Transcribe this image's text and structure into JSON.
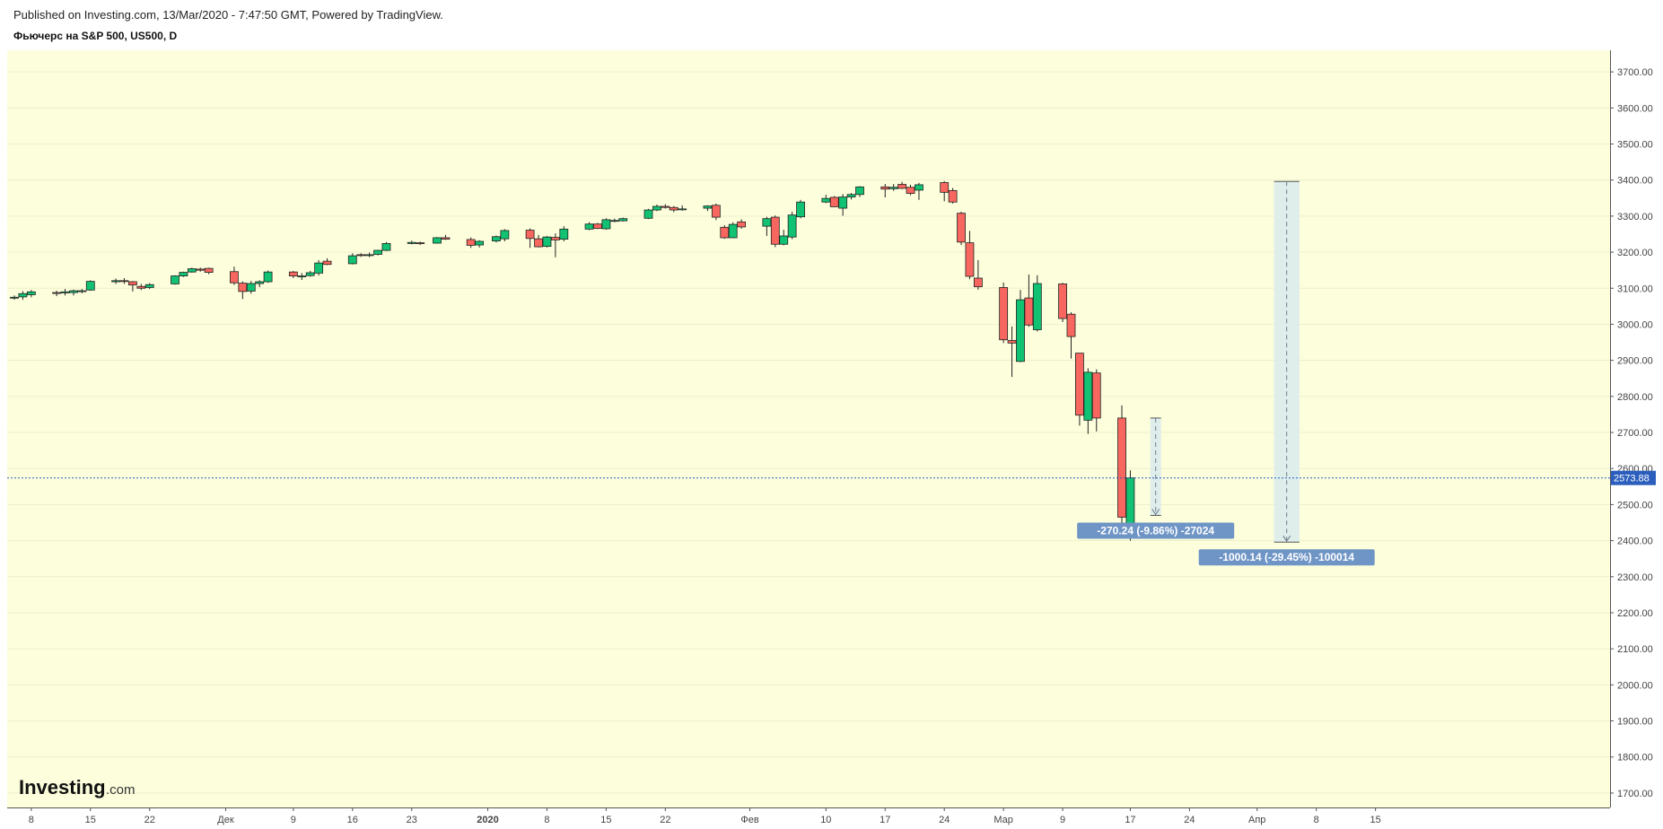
{
  "header": {
    "published": "Published on Investing.com, 13/Mar/2020 - 7:47:50 GMT, Powered by TradingView.",
    "title": "Фьючерс на S&P 500, US500, D"
  },
  "logo": {
    "main": "Investing",
    "suffix": ".com"
  },
  "colors": {
    "background": "#fcfedc",
    "up": "#10c272",
    "down": "#f7675f",
    "measure_fill": "#dcecec",
    "label_bg": "#6f95c6",
    "price_line": "#2c5fbd"
  },
  "chart_data": {
    "type": "candlestick",
    "title": "Фьючерс на S&P 500, US500, D",
    "ylim": [
      1660,
      3760
    ],
    "y_ticks": [
      "3700.00",
      "3600.00",
      "3500.00",
      "3400.00",
      "3300.00",
      "3200.00",
      "3100.00",
      "3000.00",
      "2900.00",
      "2800.00",
      "2700.00",
      "2600.00",
      "2500.00",
      "2400.00",
      "2300.00",
      "2200.00",
      "2100.00",
      "2000.00",
      "1900.00",
      "1800.00",
      "1700.00"
    ],
    "x_ticks": [
      "8",
      "15",
      "22",
      "Дек",
      "9",
      "16",
      "23",
      "2020",
      "8",
      "15",
      "22",
      "Фев",
      "10",
      "17",
      "24",
      "Мар",
      "9",
      "17",
      "24",
      "Апр",
      "8",
      "15"
    ],
    "last_price": "2573.88",
    "candles": [
      {
        "date": "2019-11-06",
        "o": 3074,
        "h": 3080,
        "l": 3068,
        "c": 3075
      },
      {
        "date": "2019-11-07",
        "o": 3076,
        "h": 3092,
        "l": 3068,
        "c": 3085
      },
      {
        "date": "2019-11-08",
        "o": 3082,
        "h": 3095,
        "l": 3075,
        "c": 3090
      },
      {
        "date": "2019-11-11",
        "o": 3088,
        "h": 3093,
        "l": 3078,
        "c": 3087
      },
      {
        "date": "2019-11-12",
        "o": 3087,
        "h": 3098,
        "l": 3080,
        "c": 3090
      },
      {
        "date": "2019-11-13",
        "o": 3088,
        "h": 3096,
        "l": 3080,
        "c": 3093
      },
      {
        "date": "2019-11-14",
        "o": 3093,
        "h": 3098,
        "l": 3086,
        "c": 3093
      },
      {
        "date": "2019-11-15",
        "o": 3095,
        "h": 3122,
        "l": 3093,
        "c": 3119
      },
      {
        "date": "2019-11-18",
        "o": 3118,
        "h": 3127,
        "l": 3112,
        "c": 3121
      },
      {
        "date": "2019-11-19",
        "o": 3121,
        "h": 3128,
        "l": 3112,
        "c": 3119
      },
      {
        "date": "2019-11-20",
        "o": 3118,
        "h": 3120,
        "l": 3091,
        "c": 3109
      },
      {
        "date": "2019-11-21",
        "o": 3105,
        "h": 3112,
        "l": 3095,
        "c": 3100
      },
      {
        "date": "2019-11-22",
        "o": 3102,
        "h": 3114,
        "l": 3098,
        "c": 3110
      },
      {
        "date": "2019-11-25",
        "o": 3112,
        "h": 3136,
        "l": 3110,
        "c": 3134
      },
      {
        "date": "2019-11-26",
        "o": 3134,
        "h": 3146,
        "l": 3131,
        "c": 3144
      },
      {
        "date": "2019-11-27",
        "o": 3145,
        "h": 3157,
        "l": 3143,
        "c": 3154
      },
      {
        "date": "2019-11-28",
        "o": 3153,
        "h": 3157,
        "l": 3146,
        "c": 3150
      },
      {
        "date": "2019-11-29",
        "o": 3155,
        "h": 3157,
        "l": 3139,
        "c": 3144
      },
      {
        "date": "2019-12-02",
        "o": 3146,
        "h": 3160,
        "l": 3109,
        "c": 3115
      },
      {
        "date": "2019-12-03",
        "o": 3114,
        "h": 3119,
        "l": 3070,
        "c": 3091
      },
      {
        "date": "2019-12-04",
        "o": 3092,
        "h": 3120,
        "l": 3085,
        "c": 3113
      },
      {
        "date": "2019-12-05",
        "o": 3113,
        "h": 3122,
        "l": 3103,
        "c": 3118
      },
      {
        "date": "2019-12-06",
        "o": 3118,
        "h": 3149,
        "l": 3115,
        "c": 3145
      },
      {
        "date": "2019-12-09",
        "o": 3145,
        "h": 3148,
        "l": 3128,
        "c": 3134
      },
      {
        "date": "2019-12-10",
        "o": 3134,
        "h": 3142,
        "l": 3123,
        "c": 3134
      },
      {
        "date": "2019-12-11",
        "o": 3135,
        "h": 3148,
        "l": 3132,
        "c": 3143
      },
      {
        "date": "2019-12-12",
        "o": 3142,
        "h": 3178,
        "l": 3135,
        "c": 3170
      },
      {
        "date": "2019-12-13",
        "o": 3175,
        "h": 3183,
        "l": 3164,
        "c": 3166
      },
      {
        "date": "2019-12-16",
        "o": 3168,
        "h": 3197,
        "l": 3166,
        "c": 3190
      },
      {
        "date": "2019-12-17",
        "o": 3193,
        "h": 3197,
        "l": 3187,
        "c": 3191
      },
      {
        "date": "2019-12-18",
        "o": 3192,
        "h": 3199,
        "l": 3186,
        "c": 3193
      },
      {
        "date": "2019-12-19",
        "o": 3194,
        "h": 3206,
        "l": 3191,
        "c": 3205
      },
      {
        "date": "2019-12-20",
        "o": 3205,
        "h": 3228,
        "l": 3203,
        "c": 3224
      },
      {
        "date": "2019-12-23",
        "o": 3224,
        "h": 3232,
        "l": 3222,
        "c": 3227
      },
      {
        "date": "2019-12-24",
        "o": 3226,
        "h": 3229,
        "l": 3220,
        "c": 3224
      },
      {
        "date": "2019-12-26",
        "o": 3225,
        "h": 3242,
        "l": 3224,
        "c": 3240
      },
      {
        "date": "2019-12-27",
        "o": 3240,
        "h": 3248,
        "l": 3234,
        "c": 3236
      },
      {
        "date": "2019-12-30",
        "o": 3235,
        "h": 3241,
        "l": 3212,
        "c": 3219
      },
      {
        "date": "2019-12-31",
        "o": 3220,
        "h": 3233,
        "l": 3213,
        "c": 3230
      },
      {
        "date": "2020-01-02",
        "o": 3231,
        "h": 3246,
        "l": 3227,
        "c": 3243
      },
      {
        "date": "2020-01-03",
        "o": 3237,
        "h": 3264,
        "l": 3230,
        "c": 3260
      },
      {
        "date": "2020-01-06",
        "o": 3261,
        "h": 3266,
        "l": 3212,
        "c": 3238
      },
      {
        "date": "2020-01-07",
        "o": 3237,
        "h": 3248,
        "l": 3213,
        "c": 3215
      },
      {
        "date": "2020-01-08",
        "o": 3216,
        "h": 3245,
        "l": 3213,
        "c": 3242
      },
      {
        "date": "2020-01-09",
        "o": 3241,
        "h": 3252,
        "l": 3186,
        "c": 3234
      },
      {
        "date": "2020-01-10",
        "o": 3236,
        "h": 3272,
        "l": 3230,
        "c": 3264
      },
      {
        "date": "2020-01-13",
        "o": 3264,
        "h": 3283,
        "l": 3261,
        "c": 3278
      },
      {
        "date": "2020-01-14",
        "o": 3278,
        "h": 3281,
        "l": 3264,
        "c": 3266
      },
      {
        "date": "2020-01-15",
        "o": 3265,
        "h": 3294,
        "l": 3262,
        "c": 3290
      },
      {
        "date": "2020-01-16",
        "o": 3288,
        "h": 3293,
        "l": 3283,
        "c": 3288
      },
      {
        "date": "2020-01-17",
        "o": 3287,
        "h": 3296,
        "l": 3285,
        "c": 3293
      },
      {
        "date": "2020-01-20",
        "o": 3294,
        "h": 3320,
        "l": 3292,
        "c": 3317
      },
      {
        "date": "2020-01-21",
        "o": 3317,
        "h": 3332,
        "l": 3314,
        "c": 3327
      },
      {
        "date": "2020-01-22",
        "o": 3327,
        "h": 3333,
        "l": 3321,
        "c": 3324
      },
      {
        "date": "2020-01-23",
        "o": 3324,
        "h": 3328,
        "l": 3311,
        "c": 3317
      },
      {
        "date": "2020-01-24",
        "o": 3318,
        "h": 3330,
        "l": 3315,
        "c": 3320
      },
      {
        "date": "2020-01-27",
        "o": 3322,
        "h": 3330,
        "l": 3314,
        "c": 3328
      },
      {
        "date": "2020-01-28",
        "o": 3330,
        "h": 3335,
        "l": 3289,
        "c": 3297
      },
      {
        "date": "2020-01-29",
        "o": 3269,
        "h": 3275,
        "l": 3237,
        "c": 3240
      },
      {
        "date": "2020-01-30",
        "o": 3240,
        "h": 3283,
        "l": 3239,
        "c": 3277
      },
      {
        "date": "2020-01-31",
        "o": 3284,
        "h": 3291,
        "l": 3265,
        "c": 3270
      },
      {
        "date": "2020-02-03",
        "o": 3272,
        "h": 3298,
        "l": 3245,
        "c": 3293
      },
      {
        "date": "2020-02-04",
        "o": 3297,
        "h": 3302,
        "l": 3214,
        "c": 3222
      },
      {
        "date": "2020-02-05",
        "o": 3222,
        "h": 3262,
        "l": 3219,
        "c": 3245
      },
      {
        "date": "2020-02-06",
        "o": 3242,
        "h": 3312,
        "l": 3236,
        "c": 3303
      },
      {
        "date": "2020-02-07",
        "o": 3298,
        "h": 3345,
        "l": 3294,
        "c": 3339
      },
      {
        "date": "2020-02-10",
        "o": 3339,
        "h": 3359,
        "l": 3336,
        "c": 3349
      },
      {
        "date": "2020-02-11",
        "o": 3352,
        "h": 3356,
        "l": 3325,
        "c": 3326
      },
      {
        "date": "2020-02-12",
        "o": 3322,
        "h": 3361,
        "l": 3301,
        "c": 3353
      },
      {
        "date": "2020-02-13",
        "o": 3353,
        "h": 3364,
        "l": 3346,
        "c": 3360
      },
      {
        "date": "2020-02-14",
        "o": 3360,
        "h": 3383,
        "l": 3353,
        "c": 3381
      },
      {
        "date": "2020-02-17",
        "o": 3381,
        "h": 3389,
        "l": 3352,
        "c": 3375
      },
      {
        "date": "2020-02-18",
        "o": 3376,
        "h": 3389,
        "l": 3370,
        "c": 3380
      },
      {
        "date": "2020-02-19",
        "o": 3388,
        "h": 3395,
        "l": 3375,
        "c": 3377
      },
      {
        "date": "2020-02-20",
        "o": 3380,
        "h": 3387,
        "l": 3358,
        "c": 3363
      },
      {
        "date": "2020-02-21",
        "o": 3372,
        "h": 3392,
        "l": 3345,
        "c": 3387
      },
      {
        "date": "2020-02-24",
        "o": 3393,
        "h": 3397,
        "l": 3341,
        "c": 3366
      },
      {
        "date": "2020-02-25",
        "o": 3371,
        "h": 3378,
        "l": 3335,
        "c": 3339
      },
      {
        "date": "2020-02-26",
        "o": 3308,
        "h": 3312,
        "l": 3220,
        "c": 3228
      },
      {
        "date": "2020-02-27",
        "o": 3226,
        "h": 3259,
        "l": 3125,
        "c": 3133
      },
      {
        "date": "2020-02-28",
        "o": 3128,
        "h": 3178,
        "l": 3096,
        "c": 3104
      },
      {
        "date": "2020-03-02",
        "o": 3102,
        "h": 3116,
        "l": 2948,
        "c": 2957
      },
      {
        "date": "2020-03-03",
        "o": 2955,
        "h": 2994,
        "l": 2854,
        "c": 2948
      },
      {
        "date": "2020-03-04",
        "o": 2897,
        "h": 3095,
        "l": 2895,
        "c": 3068
      },
      {
        "date": "2020-03-05",
        "o": 3073,
        "h": 3138,
        "l": 2993,
        "c": 2998
      },
      {
        "date": "2020-03-06",
        "o": 2985,
        "h": 3136,
        "l": 2980,
        "c": 3113
      },
      {
        "date": "2020-03-09",
        "o": 3112,
        "h": 3115,
        "l": 3006,
        "c": 3016
      },
      {
        "date": "2020-03-10",
        "o": 3028,
        "h": 3033,
        "l": 2905,
        "c": 2966
      },
      {
        "date": "2020-03-11",
        "o": 2920,
        "h": 2920,
        "l": 2719,
        "c": 2748
      },
      {
        "date": "2020-03-12",
        "o": 2734,
        "h": 2878,
        "l": 2696,
        "c": 2867
      },
      {
        "date": "2020-03-13",
        "o": 2865,
        "h": 2875,
        "l": 2703,
        "c": 2740
      },
      {
        "date": "2020-03-16",
        "o": 2740,
        "h": 2775,
        "l": 2448,
        "c": 2465
      },
      {
        "date": "2020-03-17",
        "o": 2440,
        "h": 2595,
        "l": 2400,
        "c": 2574
      }
    ],
    "measurements": [
      {
        "label": "-270.24 (-9.86%) -27024",
        "from": 2740,
        "to": 2470,
        "start_date": "2020-03-20",
        "end_date": "2020-03-20"
      },
      {
        "label": "-1000.14 (-29.45%) -100014",
        "from": 3396,
        "to": 2396,
        "start_date": "2020-04-03",
        "end_date": "2020-04-06"
      }
    ]
  }
}
